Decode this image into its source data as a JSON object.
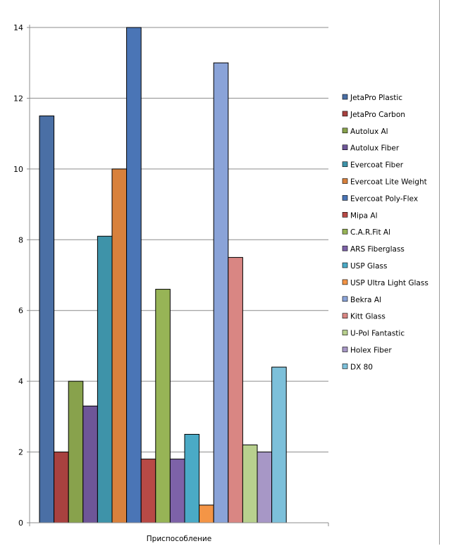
{
  "chart_data": {
    "type": "bar",
    "title": "",
    "xlabel": "",
    "ylabel": "",
    "categories": [
      "Приспособление"
    ],
    "ylim": [
      0,
      14
    ],
    "yticks": [
      0,
      2,
      4,
      6,
      8,
      10,
      12,
      14
    ],
    "grid": true,
    "legend_position": "right",
    "series": [
      {
        "name": "JetaPro Plastic",
        "values": [
          11.5
        ],
        "color": "#4A6FA5"
      },
      {
        "name": "JetaPro Carbon",
        "values": [
          2
        ],
        "color": "#A8413F"
      },
      {
        "name": "Autolux Al",
        "values": [
          4
        ],
        "color": "#88A24C"
      },
      {
        "name": "Autolux Fiber",
        "values": [
          3.3
        ],
        "color": "#6E5698"
      },
      {
        "name": "Evercoat Fiber",
        "values": [
          8.1
        ],
        "color": "#3E93A9"
      },
      {
        "name": "Evercoat Lite Weight",
        "values": [
          10
        ],
        "color": "#D8813C"
      },
      {
        "name": "Evercoat Poly-Flex",
        "values": [
          14
        ],
        "color": "#4A75B6"
      },
      {
        "name": "Mipa Al",
        "values": [
          1.8
        ],
        "color": "#B84A46"
      },
      {
        "name": "C.A.R.Fit Al",
        "values": [
          6.6
        ],
        "color": "#97B456"
      },
      {
        "name": "ARS Fiberglass",
        "values": [
          1.8
        ],
        "color": "#7D62A8"
      },
      {
        "name": "USP Glass",
        "values": [
          2.5
        ],
        "color": "#4AAAC6"
      },
      {
        "name": "USP Ultra Light Glass",
        "values": [
          0.5
        ],
        "color": "#F49546"
      },
      {
        "name": "Bekra Al",
        "values": [
          13
        ],
        "color": "#8AA3D8"
      },
      {
        "name": "Kitt Glass",
        "values": [
          7.5
        ],
        "color": "#D98683"
      },
      {
        "name": "U-Pol Fantastic",
        "values": [
          2.2
        ],
        "color": "#B8D08E"
      },
      {
        "name": "Holex Fiber",
        "values": [
          2
        ],
        "color": "#A797C6"
      },
      {
        "name": "DX 80",
        "values": [
          4.4
        ],
        "color": "#7DC0DA"
      }
    ]
  }
}
